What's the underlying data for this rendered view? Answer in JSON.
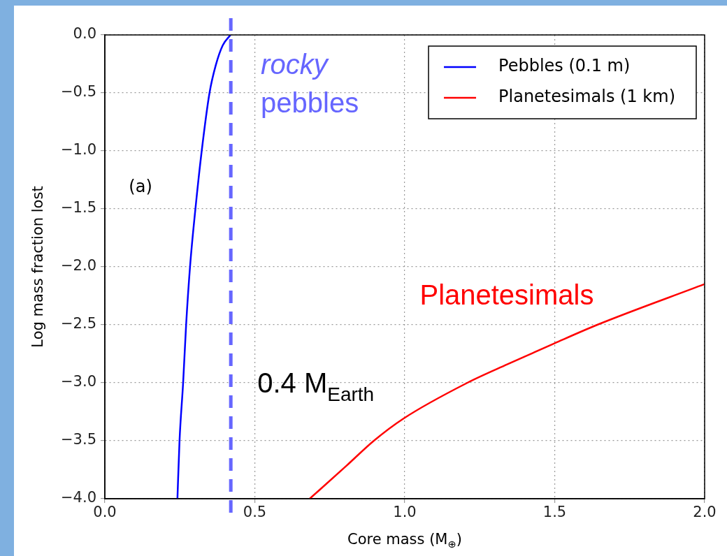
{
  "chart_data": {
    "type": "line",
    "xlabel": "Core mass (M$_{⊕}$)",
    "ylabel": "Log mass fraction lost",
    "xlim": [
      0,
      2
    ],
    "xticks": [
      {
        "value": 0,
        "label": "0.0"
      },
      0.5,
      {
        "value": 1,
        "label": "1.0"
      },
      1.5,
      {
        "value": 2,
        "label": "2.0"
      }
    ],
    "ylim": [
      -4,
      0
    ],
    "yticks": [
      {
        "value": -4,
        "label": "−4.0"
      },
      {
        "value": -3.5,
        "label": "−3.5"
      },
      {
        "value": -3,
        "label": "−3.0"
      },
      {
        "value": -2.5,
        "label": "−2.5"
      },
      {
        "value": -2,
        "label": "−2.0"
      },
      {
        "value": -1.5,
        "label": "−1.5"
      },
      {
        "value": -1,
        "label": "−1.0"
      },
      {
        "value": -0.5,
        "label": "−0.5"
      },
      {
        "value": 0,
        "label": "0.0"
      }
    ],
    "grid": true,
    "legend": "top right",
    "line_style": "solid",
    "marker": "none",
    "series": [
      {
        "name": "Pebbles (0.1 m)",
        "color": "#0000ff",
        "x": [
          0.242,
          0.249,
          0.261,
          0.271,
          0.284,
          0.302,
          0.323,
          0.349,
          0.37,
          0.393,
          0.419
        ],
        "values": [
          -4,
          -3.5,
          -3,
          -2.5,
          -2,
          -1.5,
          -1,
          -0.5,
          -0.26,
          -0.09,
          0
        ]
      },
      {
        "name": "Planetesimals (1 km)",
        "color": "#ff0000",
        "x": [
          0.683,
          0.808,
          0.897,
          0.995,
          1.209,
          1.343,
          1.499,
          1.642,
          1.999
        ],
        "values": [
          -4,
          -3.71,
          -3.5,
          -3.31,
          -3,
          -2.84,
          -2.66,
          -2.5,
          -2.15
        ]
      }
    ],
    "ref_lines": [
      {
        "axis": "x",
        "value": 0.42,
        "label": "0.4 M$_{Earth}$",
        "color": "#6666ff",
        "line_style": "dashed"
      }
    ],
    "annotations": [
      "(a)",
      "rocky",
      "pebbles",
      "Planetesimals"
    ]
  }
}
